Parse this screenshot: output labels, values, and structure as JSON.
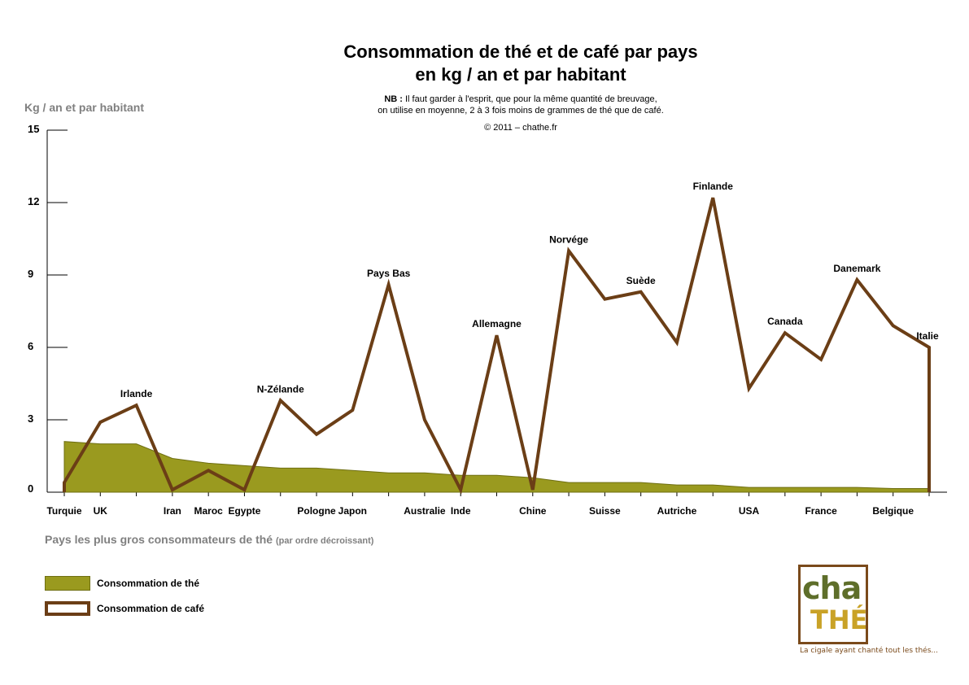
{
  "header": {
    "title_line1": "Consommation de thé et de café par pays",
    "title_line2": "en kg / an et par habitant",
    "note_prefix": "NB :",
    "note_line1": " Il faut garder à l'esprit, que pour la même quantité de breuvage,",
    "note_line2": "on utilise en moyenne, 2 à 3 fois moins de grammes de thé que de café.",
    "copyright": "© 2011 – chathe.fr"
  },
  "colors": {
    "tea_fill": "#9a9a1f",
    "tea_edge": "#6f6f12",
    "coffee_line": "#6b3e16"
  },
  "legend": {
    "tea": "Consommation  de thé",
    "coffee": "Consommation de café"
  },
  "logo": {
    "top_text": "cha",
    "bottom_text": "THÉ",
    "tagline": "La cigale ayant chanté tout les thés..."
  },
  "chart_data": {
    "type": "area",
    "ylabel": "Kg / an et par habitant",
    "xlabel": "Pays les plus gros consommateurs de thé",
    "xlabel_note": "(par ordre décroissant)",
    "ylim": [
      0,
      15
    ],
    "yticks": [
      0,
      3,
      6,
      9,
      12,
      15
    ],
    "x_tick_labels": [
      "Turquie",
      "UK",
      "Iran",
      "Maroc",
      "Egypte",
      "Pologne",
      "Japon",
      "Australie",
      "Inde",
      "Chine",
      "Suisse",
      "Autriche",
      "USA",
      "France",
      "Belgique"
    ],
    "point_labels": [
      "Irlande",
      "N-Zélande",
      "Pays Bas",
      "Allemagne",
      "Norvége",
      "Suède",
      "Finlande",
      "Canada",
      "Danemark",
      "Italie"
    ],
    "series": [
      {
        "name": "Consommation  de thé",
        "type": "area",
        "values": [
          2.1,
          2.0,
          2.0,
          1.4,
          1.2,
          1.1,
          1.0,
          1.0,
          0.9,
          0.8,
          0.8,
          0.7,
          0.7,
          0.6,
          0.4,
          0.4,
          0.4,
          0.3,
          0.3,
          0.2,
          0.2,
          0.2,
          0.2,
          0.15,
          0.15
        ]
      },
      {
        "name": "Consommation de café",
        "type": "line",
        "values": [
          0.4,
          2.9,
          3.6,
          0.1,
          0.9,
          0.1,
          3.8,
          2.4,
          3.4,
          8.6,
          3.0,
          0.1,
          6.5,
          0.1,
          10.0,
          8.0,
          8.3,
          6.2,
          12.2,
          4.3,
          6.6,
          5.5,
          8.8,
          6.9,
          6.0
        ]
      }
    ],
    "point_label_positions": [
      2,
      6,
      9,
      12,
      14,
      16,
      18,
      20,
      22,
      24
    ],
    "x_tick_positions": [
      0,
      1,
      3,
      4,
      5,
      7,
      8,
      10,
      11,
      13,
      15,
      17,
      19,
      21,
      23
    ]
  }
}
